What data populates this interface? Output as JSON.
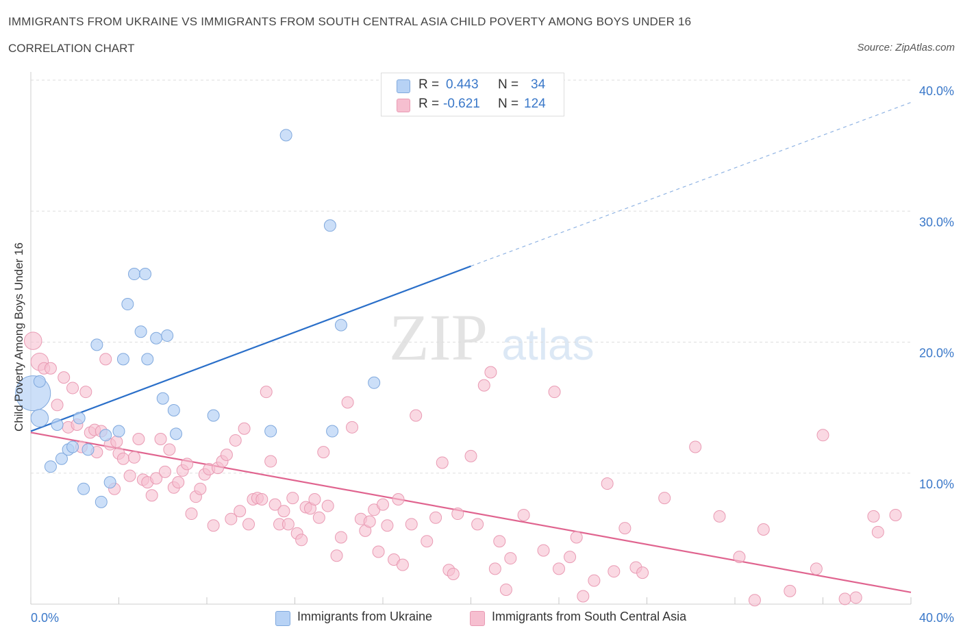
{
  "header": {
    "title": "IMMIGRANTS FROM UKRAINE VS IMMIGRANTS FROM SOUTH CENTRAL ASIA CHILD POVERTY AMONG BOYS UNDER 16",
    "subtitle": "CORRELATION CHART",
    "source": "Source: ZipAtlas.com"
  },
  "legend": {
    "r_label": "R =",
    "n_label": "N =",
    "ukraine_r": "0.443",
    "ukraine_n": "34",
    "sca_r": "-0.621",
    "sca_n": "124"
  },
  "bottom_legend": {
    "ukraine": "Immigrants from Ukraine",
    "sca": "Immigrants from South Central Asia"
  },
  "watermark": {
    "zip": "ZIP",
    "atlas": "atlas"
  },
  "colors": {
    "ukraine_fill": "#b7d2f5",
    "ukraine_stroke": "#7fa8dd",
    "ukraine_line": "#2a6fc9",
    "sca_fill": "#f6bfd0",
    "sca_stroke": "#e99ab3",
    "sca_line": "#e0648f",
    "tick_text": "#3a78c9",
    "grid": "#dddddd"
  },
  "chart_data": {
    "type": "scatter",
    "title": "IMMIGRANTS FROM UKRAINE VS IMMIGRANTS FROM SOUTH CENTRAL ASIA CHILD POVERTY AMONG BOYS UNDER 16",
    "xlabel": "",
    "ylabel": "Child Poverty Among Boys Under 16",
    "xlim": [
      0,
      40
    ],
    "ylim": [
      0,
      40
    ],
    "x_tick_labels": [
      {
        "value": 0,
        "label": "0.0%"
      },
      {
        "value": 40,
        "label": "40.0%"
      }
    ],
    "y_tick_labels": [
      {
        "value": 10,
        "label": "10.0%"
      },
      {
        "value": 20,
        "label": "20.0%"
      },
      {
        "value": 30,
        "label": "30.0%"
      },
      {
        "value": 40,
        "label": "40.0%"
      }
    ],
    "series": [
      {
        "name": "Immigrants from Ukraine",
        "R": 0.443,
        "N": 34,
        "trend": {
          "x0": 0,
          "y0": 13.2,
          "x1": 20,
          "y1": 25.8,
          "dash_x1": 40,
          "dash_y1": 38.3
        },
        "points": [
          [
            0.1,
            16.1,
            3
          ],
          [
            0.4,
            14.2,
            1.5
          ],
          [
            0.4,
            17.0,
            1
          ],
          [
            0.9,
            10.5,
            1
          ],
          [
            1.2,
            13.7,
            1
          ],
          [
            1.4,
            11.1,
            1
          ],
          [
            1.7,
            11.8,
            1
          ],
          [
            1.9,
            12.0,
            1
          ],
          [
            2.2,
            14.2,
            1
          ],
          [
            2.4,
            8.8,
            1
          ],
          [
            2.6,
            11.8,
            1
          ],
          [
            3.0,
            19.8,
            1
          ],
          [
            3.2,
            7.8,
            1
          ],
          [
            3.4,
            12.9,
            1
          ],
          [
            3.6,
            9.3,
            1
          ],
          [
            4.0,
            13.2,
            1
          ],
          [
            4.2,
            18.7,
            1
          ],
          [
            4.4,
            22.9,
            1
          ],
          [
            4.7,
            25.2,
            1
          ],
          [
            5.0,
            20.8,
            1
          ],
          [
            5.2,
            25.2,
            1
          ],
          [
            5.3,
            18.7,
            1
          ],
          [
            5.7,
            20.3,
            1
          ],
          [
            6.0,
            15.7,
            1
          ],
          [
            6.2,
            20.5,
            1
          ],
          [
            6.5,
            14.8,
            1
          ],
          [
            6.6,
            13.0,
            1
          ],
          [
            8.3,
            14.4,
            1
          ],
          [
            10.9,
            13.2,
            1
          ],
          [
            11.6,
            35.8,
            1
          ],
          [
            13.6,
            28.9,
            1
          ],
          [
            13.7,
            13.2,
            1
          ],
          [
            14.1,
            21.3,
            1
          ],
          [
            15.6,
            16.9,
            1
          ]
        ]
      },
      {
        "name": "Immigrants from South Central Asia",
        "R": -0.621,
        "N": 124,
        "trend": {
          "x0": 0,
          "y0": 13.1,
          "x1": 40,
          "y1": 0.9
        },
        "points": [
          [
            0.1,
            20.1,
            1.5
          ],
          [
            0.4,
            18.5,
            1.5
          ],
          [
            0.6,
            18.0,
            1
          ],
          [
            0.9,
            18.0,
            1
          ],
          [
            1.2,
            15.2,
            1
          ],
          [
            1.5,
            17.3,
            1
          ],
          [
            1.7,
            13.5,
            1
          ],
          [
            1.9,
            16.5,
            1
          ],
          [
            2.1,
            13.7,
            1
          ],
          [
            2.3,
            12.0,
            1
          ],
          [
            2.5,
            16.2,
            1
          ],
          [
            2.7,
            13.1,
            1
          ],
          [
            2.9,
            13.3,
            1
          ],
          [
            3.0,
            11.6,
            1
          ],
          [
            3.2,
            13.2,
            1
          ],
          [
            3.4,
            18.7,
            1
          ],
          [
            3.6,
            12.2,
            1
          ],
          [
            3.8,
            8.8,
            1
          ],
          [
            3.9,
            12.4,
            1
          ],
          [
            4.0,
            11.5,
            1
          ],
          [
            4.2,
            11.1,
            1
          ],
          [
            4.5,
            9.8,
            1
          ],
          [
            4.7,
            11.2,
            1
          ],
          [
            4.9,
            12.6,
            1
          ],
          [
            5.1,
            9.5,
            1
          ],
          [
            5.3,
            9.3,
            1
          ],
          [
            5.5,
            8.3,
            1
          ],
          [
            5.7,
            9.6,
            1
          ],
          [
            5.9,
            12.6,
            1
          ],
          [
            6.1,
            10.1,
            1
          ],
          [
            6.3,
            11.8,
            1
          ],
          [
            6.5,
            8.9,
            1
          ],
          [
            6.7,
            9.3,
            1
          ],
          [
            6.9,
            10.2,
            1
          ],
          [
            7.1,
            10.7,
            1
          ],
          [
            7.3,
            6.9,
            1
          ],
          [
            7.5,
            8.2,
            1
          ],
          [
            7.7,
            8.8,
            1
          ],
          [
            7.9,
            9.9,
            1
          ],
          [
            8.1,
            10.3,
            1
          ],
          [
            8.3,
            6.0,
            1
          ],
          [
            8.5,
            10.4,
            1
          ],
          [
            8.7,
            10.9,
            1
          ],
          [
            8.9,
            11.4,
            1
          ],
          [
            9.1,
            6.5,
            1
          ],
          [
            9.3,
            12.5,
            1
          ],
          [
            9.5,
            7.1,
            1
          ],
          [
            9.7,
            13.4,
            1
          ],
          [
            9.9,
            6.1,
            1
          ],
          [
            10.1,
            8.0,
            1
          ],
          [
            10.3,
            8.1,
            1
          ],
          [
            10.5,
            8.0,
            1
          ],
          [
            10.7,
            16.2,
            1
          ],
          [
            10.9,
            10.9,
            1
          ],
          [
            11.1,
            7.6,
            1
          ],
          [
            11.3,
            6.1,
            1
          ],
          [
            11.5,
            7.1,
            1
          ],
          [
            11.7,
            6.1,
            1
          ],
          [
            11.9,
            8.1,
            1
          ],
          [
            12.1,
            5.4,
            1
          ],
          [
            12.3,
            4.9,
            1
          ],
          [
            12.5,
            7.4,
            1
          ],
          [
            12.7,
            7.3,
            1
          ],
          [
            12.9,
            8.0,
            1
          ],
          [
            13.1,
            6.6,
            1
          ],
          [
            13.3,
            11.6,
            1
          ],
          [
            13.5,
            7.5,
            1
          ],
          [
            13.9,
            3.7,
            1
          ],
          [
            14.1,
            5.1,
            1
          ],
          [
            14.4,
            15.4,
            1
          ],
          [
            14.6,
            13.5,
            1
          ],
          [
            15.0,
            6.5,
            1
          ],
          [
            15.2,
            5.6,
            1
          ],
          [
            15.4,
            6.3,
            1
          ],
          [
            15.6,
            7.2,
            1
          ],
          [
            15.8,
            4.0,
            1
          ],
          [
            16.0,
            7.6,
            1
          ],
          [
            16.2,
            6.0,
            1
          ],
          [
            16.5,
            3.4,
            1
          ],
          [
            16.7,
            8.0,
            1
          ],
          [
            16.9,
            3.0,
            1
          ],
          [
            17.3,
            6.1,
            1
          ],
          [
            17.5,
            14.4,
            1
          ],
          [
            18.0,
            4.8,
            1
          ],
          [
            18.4,
            6.6,
            1
          ],
          [
            18.7,
            10.8,
            1
          ],
          [
            19.0,
            2.6,
            1
          ],
          [
            19.2,
            2.3,
            1
          ],
          [
            19.4,
            6.9,
            1
          ],
          [
            20.0,
            11.3,
            1
          ],
          [
            20.3,
            6.1,
            1
          ],
          [
            20.6,
            16.7,
            1
          ],
          [
            20.9,
            17.7,
            1
          ],
          [
            21.1,
            2.7,
            1
          ],
          [
            21.3,
            4.8,
            1
          ],
          [
            21.6,
            1.1,
            1
          ],
          [
            21.8,
            3.5,
            1
          ],
          [
            22.4,
            6.8,
            1
          ],
          [
            23.3,
            4.1,
            1
          ],
          [
            23.8,
            16.2,
            1
          ],
          [
            24.0,
            2.7,
            1
          ],
          [
            24.5,
            3.6,
            1
          ],
          [
            24.8,
            5.1,
            1
          ],
          [
            25.1,
            0.6,
            1
          ],
          [
            25.6,
            1.8,
            1
          ],
          [
            26.2,
            9.2,
            1
          ],
          [
            26.5,
            2.5,
            1
          ],
          [
            27.0,
            5.8,
            1
          ],
          [
            27.5,
            2.8,
            1
          ],
          [
            27.8,
            2.4,
            1
          ],
          [
            28.8,
            8.1,
            1
          ],
          [
            30.2,
            12.0,
            1
          ],
          [
            31.3,
            6.7,
            1
          ],
          [
            32.2,
            3.6,
            1
          ],
          [
            32.9,
            0.3,
            1
          ],
          [
            33.3,
            5.7,
            1
          ],
          [
            34.5,
            1.0,
            1
          ],
          [
            35.7,
            2.7,
            1
          ],
          [
            36.0,
            12.9,
            1
          ],
          [
            37.0,
            0.4,
            1
          ],
          [
            37.5,
            0.5,
            1
          ],
          [
            38.3,
            6.7,
            1
          ],
          [
            38.5,
            5.5,
            1
          ],
          [
            39.3,
            6.8,
            1
          ]
        ]
      }
    ]
  }
}
